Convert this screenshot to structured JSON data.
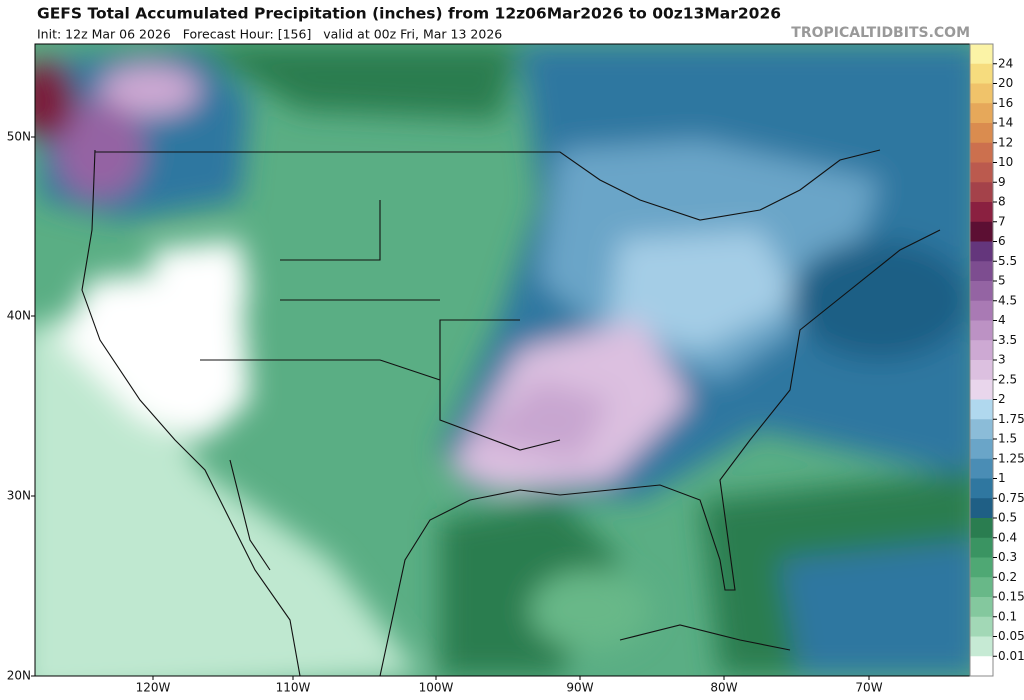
{
  "header": {
    "title": "GEFS Total Accumulated Precipitation (inches) from 12z06Mar2026 to 00z13Mar2026",
    "subtitle": "Init: 12z Mar 06 2026   Forecast Hour: [156]   valid at 00z Fri, Mar 13 2026",
    "watermark": "TROPICALTIDBITS.COM"
  },
  "map": {
    "lat_labels": [
      "50N",
      "40N",
      "30N",
      "20N"
    ],
    "lon_labels": [
      "120W",
      "110W",
      "100W",
      "90W",
      "80W",
      "70W"
    ]
  },
  "colorbar": {
    "labels": [
      24,
      20,
      16,
      14,
      12,
      10,
      9,
      8,
      7,
      6,
      5.5,
      5,
      4.5,
      4,
      3.5,
      3,
      2.5,
      2,
      1.75,
      1.5,
      1.25,
      1,
      0.75,
      0.5,
      0.4,
      0.3,
      0.2,
      0.15,
      0.1,
      0.05,
      0.01
    ],
    "colors": [
      "#fbf3a6",
      "#f6dc7e",
      "#f0c36a",
      "#e6a85a",
      "#da8c4f",
      "#cc704e",
      "#bb5a4e",
      "#a4424a",
      "#8a2040",
      "#5c0f33",
      "#64367c",
      "#7d4d90",
      "#9464a3",
      "#a97ab4",
      "#bc92c4",
      "#cda9d3",
      "#dcc0e0",
      "#e9d6ec",
      "#b0d8ee",
      "#8bbcd8",
      "#6aa5c8",
      "#4a8db5",
      "#2f77a0",
      "#1f5f85",
      "#2a7d50",
      "#3a9462",
      "#4fa874",
      "#68b888",
      "#84c89e",
      "#a2d8b6",
      "#c6ead4",
      "#ffffff"
    ]
  }
}
